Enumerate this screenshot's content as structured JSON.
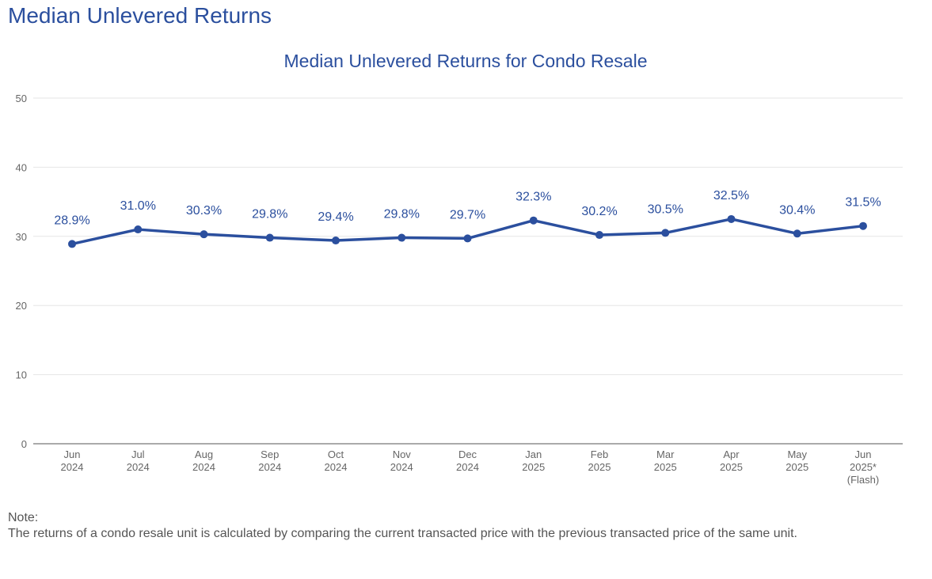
{
  "page": {
    "title": "Median Unlevered Returns",
    "note_label": "Note:",
    "note_text": "The returns of a condo resale unit is calculated by comparing the current transacted price with the previous transacted price of the same unit."
  },
  "colors": {
    "accent": "#2b4f9e",
    "line": "#2b4f9e",
    "grid": "#e6e6e6",
    "axis": "#555555",
    "tick_text": "#666666"
  },
  "chart_data": {
    "type": "line",
    "title": "Median Unlevered Returns for Condo Resale",
    "xlabel": "",
    "ylabel": "",
    "ylim": [
      0,
      50
    ],
    "yticks": [
      0,
      10,
      20,
      30,
      40,
      50
    ],
    "grid": true,
    "categories": [
      [
        "Jun",
        "2024"
      ],
      [
        "Jul",
        "2024"
      ],
      [
        "Aug",
        "2024"
      ],
      [
        "Sep",
        "2024"
      ],
      [
        "Oct",
        "2024"
      ],
      [
        "Nov",
        "2024"
      ],
      [
        "Dec",
        "2024"
      ],
      [
        "Jan",
        "2025"
      ],
      [
        "Feb",
        "2025"
      ],
      [
        "Mar",
        "2025"
      ],
      [
        "Apr",
        "2025"
      ],
      [
        "May",
        "2025"
      ],
      [
        "Jun",
        "2025*",
        "(Flash)"
      ]
    ],
    "series": [
      {
        "values": [
          28.9,
          31.0,
          30.3,
          29.8,
          29.4,
          29.8,
          29.7,
          32.3,
          30.2,
          30.5,
          32.5,
          30.4,
          31.5
        ],
        "labels": [
          "28.9%",
          "31.0%",
          "30.3%",
          "29.8%",
          "29.4%",
          "29.8%",
          "29.7%",
          "32.3%",
          "30.2%",
          "30.5%",
          "32.5%",
          "30.4%",
          "31.5%"
        ]
      }
    ]
  }
}
